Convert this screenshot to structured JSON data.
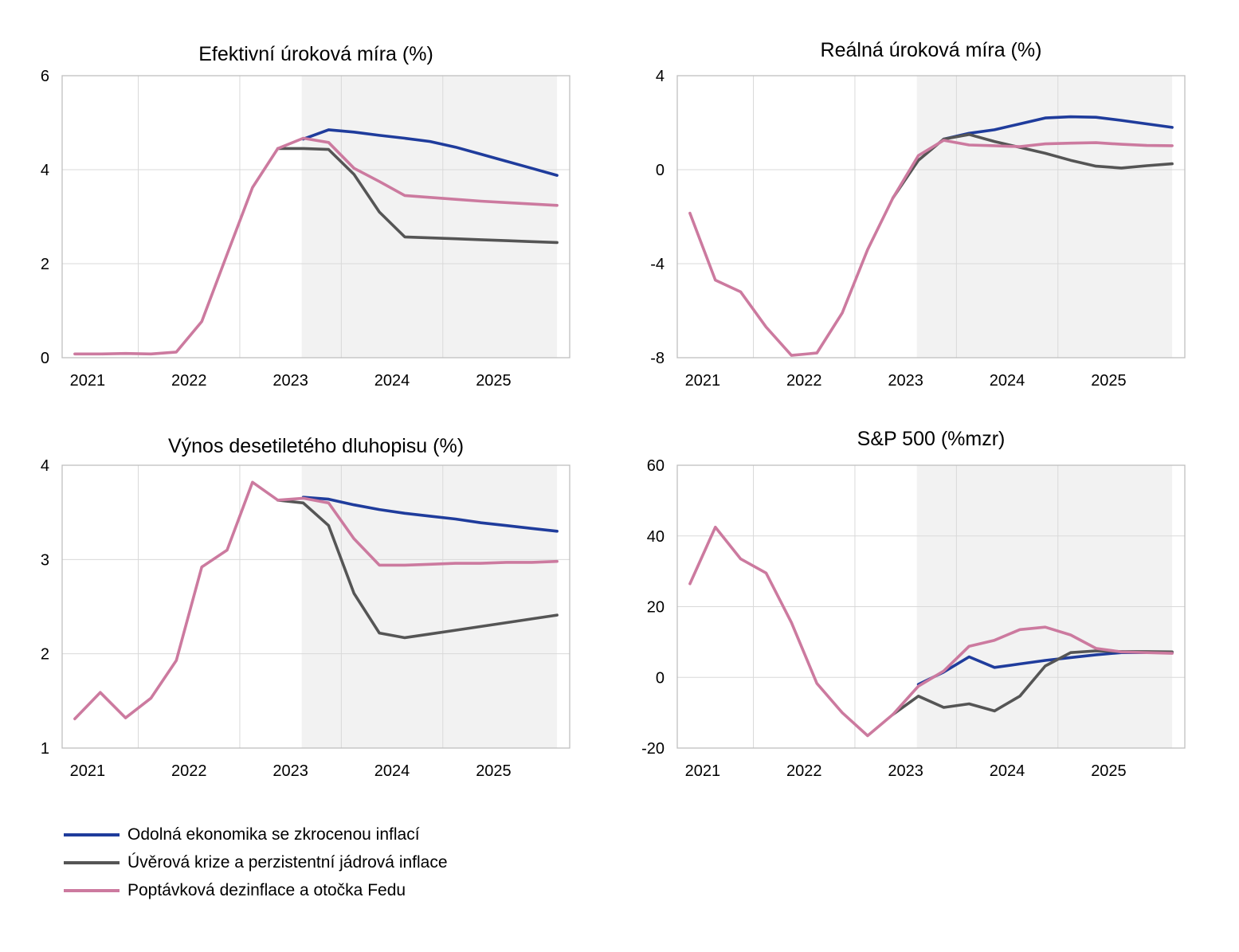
{
  "colors": {
    "forecast_shade": "#f2f2f2",
    "grid": "#d9d9d9",
    "axis": "#bfbfbf"
  },
  "legend": [
    {
      "name": "Odolná ekonomika se zkrocenou inflací",
      "color": "#1f3c9c"
    },
    {
      "name": "Úvěrová krize a perzistentní jádrová inflace",
      "color": "#555555"
    },
    {
      "name": "Poptávková dezinflace a otočka Fedu",
      "color": "#cc7a9f"
    }
  ],
  "chart_data": [
    {
      "type": "line",
      "title": "Efektivní úroková míra (%)",
      "xlabel": "",
      "ylabel": "",
      "x_labels": [
        "2021",
        "2022",
        "2023",
        "2024",
        "2025"
      ],
      "x": [
        "2020Q3",
        "2020Q4",
        "2021Q1",
        "2021Q2",
        "2021Q3",
        "2021Q4",
        "2022Q1",
        "2022Q2",
        "2022Q3",
        "2022Q4",
        "2023Q1",
        "2023Q2",
        "2023Q3",
        "2023Q4",
        "2024Q1",
        "2024Q2",
        "2024Q3",
        "2024Q4",
        "2025Q1",
        "2025Q2"
      ],
      "ylim": [
        0,
        6
      ],
      "yticks": [
        0,
        2,
        4,
        6
      ],
      "forecast_from": "2022Q4",
      "grid": true,
      "series": [
        {
          "values": [
            null,
            null,
            null,
            null,
            null,
            null,
            null,
            null,
            null,
            4.65,
            4.85,
            4.8,
            4.73,
            4.67,
            4.6,
            4.48,
            4.33,
            4.18,
            4.03,
            3.88
          ]
        },
        {
          "values": [
            null,
            null,
            null,
            null,
            null,
            null,
            null,
            null,
            4.45,
            4.45,
            4.43,
            3.9,
            3.1,
            2.57,
            2.55,
            2.53,
            2.51,
            2.49,
            2.47,
            2.45
          ]
        },
        {
          "values": [
            0.08,
            0.08,
            0.09,
            0.08,
            0.12,
            0.77,
            2.2,
            3.62,
            4.45,
            4.67,
            4.58,
            4.03,
            3.75,
            3.45,
            3.41,
            3.37,
            3.33,
            3.3,
            3.27,
            3.24
          ]
        }
      ]
    },
    {
      "type": "line",
      "title": "Reálná úroková míra (%)",
      "xlabel": "",
      "ylabel": "",
      "x_labels": [
        "2021",
        "2022",
        "2023",
        "2024",
        "2025"
      ],
      "x": [
        "2020Q3",
        "2020Q4",
        "2021Q1",
        "2021Q2",
        "2021Q3",
        "2021Q4",
        "2022Q1",
        "2022Q2",
        "2022Q3",
        "2022Q4",
        "2023Q1",
        "2023Q2",
        "2023Q3",
        "2023Q4",
        "2024Q1",
        "2024Q2",
        "2024Q3",
        "2024Q4",
        "2025Q1",
        "2025Q2"
      ],
      "ylim": [
        -8,
        4
      ],
      "yticks": [
        -8,
        -4,
        0,
        4
      ],
      "forecast_from": "2022Q4",
      "grid": true,
      "series": [
        {
          "values": [
            null,
            null,
            null,
            null,
            null,
            null,
            null,
            null,
            null,
            null,
            1.3,
            1.55,
            1.7,
            1.95,
            2.2,
            2.25,
            2.23,
            2.1,
            1.95,
            1.8
          ]
        },
        {
          "values": [
            null,
            null,
            null,
            null,
            null,
            null,
            null,
            null,
            -1.2,
            0.4,
            1.3,
            1.5,
            1.2,
            0.95,
            0.7,
            0.4,
            0.15,
            0.07,
            0.17,
            0.25
          ]
        },
        {
          "values": [
            -1.85,
            -4.7,
            -5.2,
            -6.7,
            -7.9,
            -7.8,
            -6.1,
            -3.4,
            -1.2,
            0.6,
            1.25,
            1.05,
            1.02,
            0.98,
            1.1,
            1.13,
            1.15,
            1.08,
            1.03,
            1.02
          ]
        }
      ]
    },
    {
      "type": "line",
      "title": "Výnos desetiletého dluhopisu (%)",
      "xlabel": "",
      "ylabel": "",
      "x_labels": [
        "2021",
        "2022",
        "2023",
        "2024",
        "2025"
      ],
      "x": [
        "2020Q3",
        "2020Q4",
        "2021Q1",
        "2021Q2",
        "2021Q3",
        "2021Q4",
        "2022Q1",
        "2022Q2",
        "2022Q3",
        "2022Q4",
        "2023Q1",
        "2023Q2",
        "2023Q3",
        "2023Q4",
        "2024Q1",
        "2024Q2",
        "2024Q3",
        "2024Q4",
        "2025Q1",
        "2025Q2"
      ],
      "ylim": [
        1,
        4
      ],
      "yticks": [
        1,
        2,
        3,
        4
      ],
      "forecast_from": "2022Q4",
      "grid": true,
      "series": [
        {
          "values": [
            null,
            null,
            null,
            null,
            null,
            null,
            null,
            null,
            null,
            3.66,
            3.64,
            3.58,
            3.53,
            3.49,
            3.46,
            3.43,
            3.39,
            3.36,
            3.33,
            3.3
          ]
        },
        {
          "values": [
            null,
            null,
            null,
            null,
            null,
            null,
            null,
            null,
            3.63,
            3.6,
            3.36,
            2.64,
            2.22,
            2.17,
            2.21,
            2.25,
            2.29,
            2.33,
            2.37,
            2.41
          ]
        },
        {
          "values": [
            1.31,
            1.59,
            1.32,
            1.53,
            1.93,
            2.92,
            3.1,
            3.82,
            3.63,
            3.65,
            3.6,
            3.22,
            2.94,
            2.94,
            2.95,
            2.96,
            2.96,
            2.97,
            2.97,
            2.98
          ]
        }
      ]
    },
    {
      "type": "line",
      "title": "S&P 500 (%mzr)",
      "xlabel": "",
      "ylabel": "",
      "x_labels": [
        "2021",
        "2022",
        "2023",
        "2024",
        "2025"
      ],
      "x": [
        "2020Q3",
        "2020Q4",
        "2021Q1",
        "2021Q2",
        "2021Q3",
        "2021Q4",
        "2022Q1",
        "2022Q2",
        "2022Q3",
        "2022Q4",
        "2023Q1",
        "2023Q2",
        "2023Q3",
        "2023Q4",
        "2024Q1",
        "2024Q2",
        "2024Q3",
        "2024Q4",
        "2025Q1",
        "2025Q2"
      ],
      "ylim": [
        -20,
        60
      ],
      "yticks": [
        -20,
        0,
        20,
        40,
        60
      ],
      "forecast_from": "2022Q4",
      "grid": true,
      "series": [
        {
          "values": [
            null,
            null,
            null,
            null,
            null,
            null,
            null,
            null,
            null,
            -2,
            1.5,
            5.8,
            2.8,
            3.8,
            4.8,
            5.6,
            6.4,
            7,
            7,
            7
          ]
        },
        {
          "values": [
            null,
            null,
            null,
            null,
            null,
            null,
            null,
            null,
            -10.5,
            -5.3,
            -8.5,
            -7.5,
            -9.5,
            -5.3,
            3.2,
            7,
            7.5,
            7.3,
            7.3,
            7.2
          ]
        },
        {
          "values": [
            26.5,
            42.5,
            33.5,
            29.5,
            15.5,
            -1.7,
            -10,
            -16.5,
            -10.5,
            -2.5,
            1.8,
            8.8,
            10.5,
            13.5,
            14.2,
            12,
            8.2,
            7.2,
            7,
            6.8
          ]
        }
      ]
    }
  ]
}
